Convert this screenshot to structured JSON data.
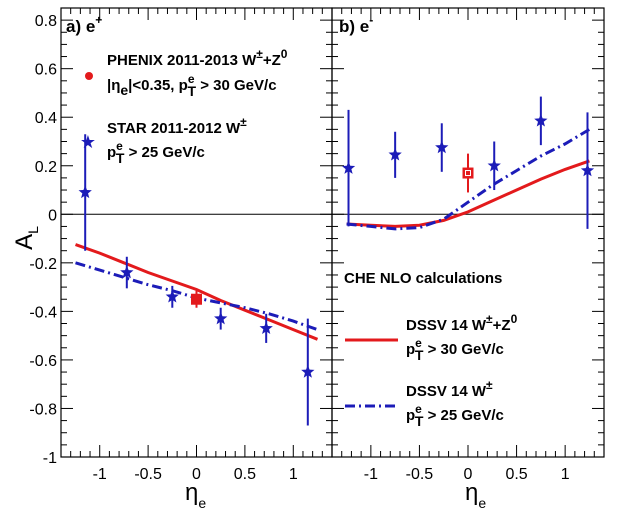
{
  "chart_data": [
    {
      "type": "scatter",
      "panel_label": "a) e",
      "panel_label_sup": "+",
      "xlabel": "η",
      "xlabel_sub": "e",
      "ylabel": "A",
      "ylabel_sub": "L",
      "xlim": [
        -1.4,
        1.4
      ],
      "ylim": [
        -1.0,
        0.85
      ],
      "xticks": [
        "-1",
        "-0.5",
        "0",
        "0.5",
        "1"
      ],
      "yticks": [
        "-1",
        "-0.8",
        "-0.6",
        "-0.4",
        "-0.2",
        "0",
        "0.2",
        "0.4",
        "0.6",
        "0.8"
      ],
      "series": [
        {
          "name": "PHENIX 2011-2013 W±+Z0",
          "marker": "square",
          "color": "#e31a1c",
          "points": [
            {
              "x": 0.0,
              "y": -0.35,
              "err": 0.035
            }
          ]
        },
        {
          "name": "STAR 2011-2012 W±",
          "marker": "star",
          "color": "#1c1cb8",
          "points": [
            {
              "x": -1.15,
              "y": 0.09,
              "err": 0.24
            },
            {
              "x": -0.72,
              "y": -0.24,
              "err": 0.065
            },
            {
              "x": -0.25,
              "y": -0.34,
              "err": 0.045
            },
            {
              "x": 0.25,
              "y": -0.43,
              "err": 0.045
            },
            {
              "x": 0.72,
              "y": -0.47,
              "err": 0.06
            },
            {
              "x": 1.15,
              "y": -0.65,
              "err": 0.22
            }
          ]
        },
        {
          "name": "DSSV 14 W±+Z0",
          "type": "line",
          "style": "solid",
          "color": "#e31a1c",
          "x": [
            -1.25,
            -1.0,
            -0.75,
            -0.5,
            -0.25,
            0.0,
            0.25,
            0.5,
            0.75,
            1.0,
            1.25
          ],
          "y": [
            -0.125,
            -0.16,
            -0.2,
            -0.24,
            -0.275,
            -0.31,
            -0.355,
            -0.395,
            -0.435,
            -0.475,
            -0.515
          ]
        },
        {
          "name": "DSSV 14 W±",
          "type": "line",
          "style": "dashdot",
          "color": "#1c1cb8",
          "x": [
            -1.25,
            -1.0,
            -0.75,
            -0.5,
            -0.25,
            0.0,
            0.25,
            0.5,
            0.75,
            1.0,
            1.25
          ],
          "y": [
            -0.2,
            -0.23,
            -0.26,
            -0.29,
            -0.315,
            -0.345,
            -0.365,
            -0.385,
            -0.41,
            -0.44,
            -0.475
          ]
        }
      ],
      "legend": {
        "phenix_line1": "PHENIX 2011-2013 W",
        "phenix_line1_sup": "±",
        "phenix_line1_mid": "+Z",
        "phenix_line1_sup2": "0",
        "phenix_line2_a": "|η",
        "phenix_line2_sub": "e",
        "phenix_line2_b": "|<0.35, p",
        "phenix_line2_sub2": "T",
        "phenix_line2_sup2": "e",
        "phenix_line2_c": " > 30 GeV/c",
        "star_line1": "STAR 2011-2012 W",
        "star_line1_sup": "±",
        "star_line2_a": "p",
        "star_line2_sub": "T",
        "star_line2_sup": "e",
        "star_line2_b": " > 25 GeV/c"
      }
    },
    {
      "type": "scatter",
      "panel_label": "b) e",
      "panel_label_sup": "-",
      "xlabel": "η",
      "xlabel_sub": "e",
      "xlim": [
        -1.4,
        1.4
      ],
      "ylim": [
        -1.0,
        0.85
      ],
      "xticks": [
        "-1",
        "-0.5",
        "0",
        "0.5",
        "1"
      ],
      "series": [
        {
          "name": "PHENIX 2011-2013 W±+Z0",
          "marker": "square",
          "color": "#e31a1c",
          "points": [
            {
              "x": 0.0,
              "y": 0.17,
              "err": 0.08
            }
          ]
        },
        {
          "name": "STAR 2011-2012 W±",
          "marker": "star",
          "color": "#1c1cb8",
          "points": [
            {
              "x": -1.23,
              "y": 0.19,
              "err": 0.24
            },
            {
              "x": -0.75,
              "y": 0.245,
              "err": 0.095
            },
            {
              "x": -0.27,
              "y": 0.275,
              "err": 0.1
            },
            {
              "x": 0.27,
              "y": 0.2,
              "err": 0.1
            },
            {
              "x": 0.75,
              "y": 0.385,
              "err": 0.1
            },
            {
              "x": 1.23,
              "y": 0.18,
              "err": 0.24
            }
          ]
        },
        {
          "name": "DSSV 14 W±+Z0",
          "type": "line",
          "style": "solid",
          "color": "#e31a1c",
          "x": [
            -1.25,
            -1.0,
            -0.75,
            -0.5,
            -0.25,
            0.0,
            0.25,
            0.5,
            0.75,
            1.0,
            1.25
          ],
          "y": [
            -0.04,
            -0.045,
            -0.05,
            -0.045,
            -0.025,
            0.01,
            0.055,
            0.1,
            0.145,
            0.185,
            0.22
          ]
        },
        {
          "name": "DSSV 14 W±",
          "type": "line",
          "style": "dashdot",
          "color": "#1c1cb8",
          "x": [
            -1.25,
            -1.0,
            -0.75,
            -0.5,
            -0.25,
            0.0,
            0.25,
            0.5,
            0.75,
            1.0,
            1.25
          ],
          "y": [
            -0.04,
            -0.05,
            -0.06,
            -0.055,
            -0.02,
            0.05,
            0.12,
            0.18,
            0.24,
            0.29,
            0.35
          ]
        }
      ],
      "legend": {
        "calc_title": "CHE NLO calculations",
        "dssv_wz_line1": "DSSV 14 W",
        "dssv_wz_line1_sup": "±",
        "dssv_wz_line1_mid": "+Z",
        "dssv_wz_line1_sup2": "0",
        "dssv_wz_line2_a": "p",
        "dssv_wz_line2_sub": "T",
        "dssv_wz_line2_sup": "e",
        "dssv_wz_line2_b": " > 30 GeV/c",
        "dssv_w_line1": "DSSV 14 W",
        "dssv_w_line1_sup": "±",
        "dssv_w_line2_a": "p",
        "dssv_w_line2_sub": "T",
        "dssv_w_line2_sup": "e",
        "dssv_w_line2_b": " > 25 GeV/c"
      }
    }
  ]
}
